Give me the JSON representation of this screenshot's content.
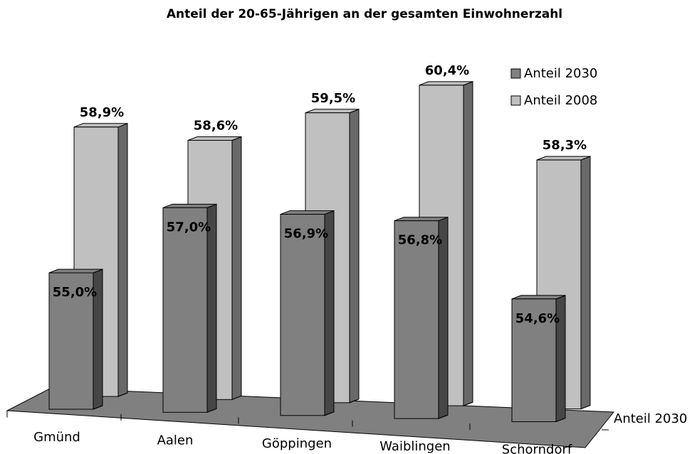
{
  "chart_data": {
    "type": "bar3d",
    "title": "Anteil der 20-65-Jährigen an der gesamten Einwohnerzahl",
    "categories": [
      "Gmünd",
      "Aalen",
      "Göppingen",
      "Waiblingen",
      "Schorndorf"
    ],
    "depth_categories": [
      "Anteil 2030"
    ],
    "ylim": [
      51,
      61
    ],
    "series": [
      {
        "name": "Anteil 2030",
        "color": "#808080",
        "values": [
          55.0,
          57.0,
          56.9,
          56.8,
          54.6
        ],
        "value_labels": [
          "55,0%",
          "57,0%",
          "56,9%",
          "56,8%",
          "54,6%"
        ]
      },
      {
        "name": "Anteil 2008",
        "color": "#c0c0c0",
        "values": [
          58.9,
          58.6,
          59.5,
          60.4,
          58.3
        ],
        "value_labels": [
          "58,9%",
          "58,6%",
          "59,5%",
          "60,4%",
          "58,3%"
        ]
      }
    ]
  }
}
